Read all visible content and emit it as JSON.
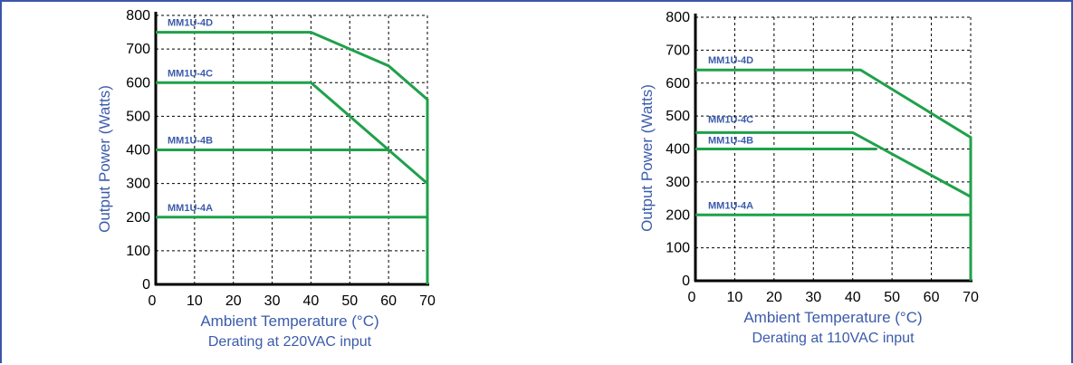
{
  "colors": {
    "frame": "#3a56a8",
    "line": "#1fa14a",
    "label": "#3b5bab",
    "axis": "#000000",
    "grid": "#000000"
  },
  "chart_data": [
    {
      "type": "line",
      "title": "",
      "subtitle": "Derating at 220VAC input",
      "xlabel": "Ambient Temperature (°C)",
      "ylabel": "Output Power (Watts)",
      "xlim": [
        0,
        70
      ],
      "ylim": [
        0,
        800
      ],
      "xticks": [
        "0",
        "10",
        "20",
        "30",
        "40",
        "50",
        "60",
        "70"
      ],
      "yticks": [
        "0",
        "100",
        "200",
        "300",
        "400",
        "500",
        "600",
        "700",
        "800"
      ],
      "grid": true,
      "grid_style": "dashed",
      "series": [
        {
          "name": "MM1U-4D",
          "x": [
            0,
            40,
            60,
            70,
            70
          ],
          "y": [
            750,
            750,
            650,
            550,
            0
          ]
        },
        {
          "name": "MM1U-4C",
          "x": [
            0,
            40,
            70
          ],
          "y": [
            600,
            600,
            300
          ]
        },
        {
          "name": "MM1U-4B",
          "x": [
            0,
            60
          ],
          "y": [
            400,
            400
          ]
        },
        {
          "name": "MM1U-4A",
          "x": [
            0,
            70
          ],
          "y": [
            200,
            200
          ]
        }
      ]
    },
    {
      "type": "line",
      "title": "",
      "subtitle": "Derating at 110VAC input",
      "xlabel": "Ambient Temperature (°C)",
      "ylabel": "Output Power (Watts)",
      "xlim": [
        0,
        70
      ],
      "ylim": [
        0,
        800
      ],
      "xticks": [
        "0",
        "10",
        "20",
        "30",
        "40",
        "50",
        "60",
        "70"
      ],
      "yticks": [
        "0",
        "100",
        "200",
        "300",
        "400",
        "500",
        "600",
        "700",
        "800"
      ],
      "grid": true,
      "grid_style": "dashed",
      "series": [
        {
          "name": "MM1U-4D",
          "x": [
            0,
            42,
            70,
            70
          ],
          "y": [
            640,
            640,
            435,
            0
          ]
        },
        {
          "name": "MM1U-4C",
          "x": [
            0,
            40,
            70
          ],
          "y": [
            450,
            450,
            255
          ]
        },
        {
          "name": "MM1U-4B",
          "x": [
            0,
            46
          ],
          "y": [
            400,
            400
          ]
        },
        {
          "name": "MM1U-4A",
          "x": [
            0,
            70
          ],
          "y": [
            200,
            200
          ]
        }
      ]
    }
  ]
}
